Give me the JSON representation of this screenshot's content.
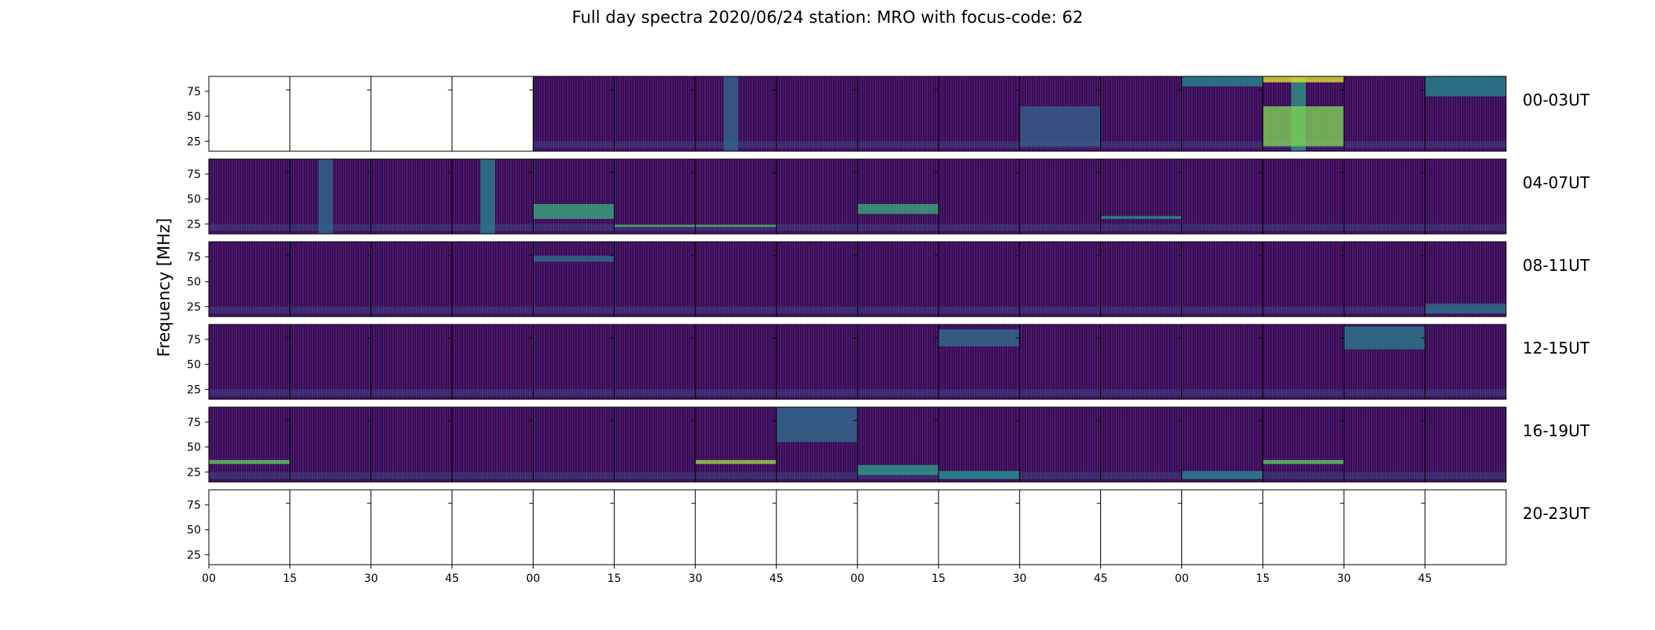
{
  "figure": {
    "title": "Full day spectra 2020/06/24 station: MRO with focus-code: 62",
    "ylabel": "Frequency [MHz]"
  },
  "colors": {
    "cmap_low": "#440154",
    "cmap_mid": "#21918c",
    "cmap_high": "#fde725",
    "empty_panel": "#ffffff",
    "frame": "#000000"
  },
  "chart_data": {
    "type": "heatmap",
    "title": "Full day spectra 2020/06/24 station: MRO with focus-code: 62",
    "xlabel": "",
    "ylabel": "Frequency [MHz]",
    "colormap": "viridis",
    "ylim": [
      15,
      90
    ],
    "yticks": [
      25,
      50,
      75
    ],
    "xticks_minutes": [
      "00",
      "15",
      "30",
      "45",
      "00",
      "15",
      "30",
      "45",
      "00",
      "15",
      "30",
      "45",
      "00",
      "15",
      "30",
      "45"
    ],
    "rows": [
      {
        "label": "00-03UT",
        "panels": [
          0,
          0,
          0,
          0,
          1,
          1,
          1,
          1,
          1,
          1,
          1,
          1,
          1,
          1,
          1,
          1
        ],
        "features": [
          {
            "panel": 6,
            "type": "vband",
            "f0": 15,
            "f1": 90,
            "intensity": 0.35
          },
          {
            "panel": 10,
            "type": "band",
            "f0": 20,
            "f1": 60,
            "intensity": 0.3
          },
          {
            "panel": 12,
            "type": "band",
            "f0": 80,
            "f1": 90,
            "intensity": 0.45
          },
          {
            "panel": 13,
            "type": "vband",
            "f0": 15,
            "f1": 90,
            "intensity": 0.55
          },
          {
            "panel": 13,
            "type": "band",
            "f0": 20,
            "f1": 60,
            "intensity": 0.8
          },
          {
            "panel": 13,
            "type": "band",
            "f0": 84,
            "f1": 90,
            "intensity": 0.95
          },
          {
            "panel": 15,
            "type": "band",
            "f0": 70,
            "f1": 90,
            "intensity": 0.45
          }
        ]
      },
      {
        "label": "04-07UT",
        "panels": [
          1,
          1,
          1,
          1,
          1,
          1,
          1,
          1,
          1,
          1,
          1,
          1,
          1,
          1,
          1,
          1
        ],
        "features": [
          {
            "panel": 1,
            "type": "vband",
            "f0": 15,
            "f1": 90,
            "intensity": 0.35
          },
          {
            "panel": 3,
            "type": "vband",
            "f0": 15,
            "f1": 90,
            "intensity": 0.45
          },
          {
            "panel": 4,
            "type": "band",
            "f0": 30,
            "f1": 45,
            "intensity": 0.6
          },
          {
            "panel": 5,
            "type": "band",
            "f0": 22,
            "f1": 24,
            "intensity": 0.7
          },
          {
            "panel": 6,
            "type": "band",
            "f0": 22,
            "f1": 24,
            "intensity": 0.7
          },
          {
            "panel": 8,
            "type": "band",
            "f0": 35,
            "f1": 45,
            "intensity": 0.6
          },
          {
            "panel": 11,
            "type": "band",
            "f0": 30,
            "f1": 33,
            "intensity": 0.5
          }
        ]
      },
      {
        "label": "08-11UT",
        "panels": [
          1,
          1,
          1,
          1,
          1,
          1,
          1,
          1,
          1,
          1,
          1,
          1,
          1,
          1,
          1,
          1
        ],
        "features": [
          {
            "panel": 4,
            "type": "band",
            "f0": 70,
            "f1": 76,
            "intensity": 0.35
          },
          {
            "panel": 15,
            "type": "band",
            "f0": 18,
            "f1": 28,
            "intensity": 0.35
          }
        ]
      },
      {
        "label": "12-15UT",
        "panels": [
          1,
          1,
          1,
          1,
          1,
          1,
          1,
          1,
          1,
          1,
          1,
          1,
          1,
          1,
          1,
          1
        ],
        "features": [
          {
            "panel": 9,
            "type": "band",
            "f0": 68,
            "f1": 85,
            "intensity": 0.35
          },
          {
            "panel": 14,
            "type": "band",
            "f0": 65,
            "f1": 88,
            "intensity": 0.4
          }
        ]
      },
      {
        "label": "16-19UT",
        "panels": [
          1,
          1,
          1,
          1,
          1,
          1,
          1,
          1,
          1,
          1,
          1,
          1,
          1,
          1,
          1,
          1
        ],
        "features": [
          {
            "panel": 0,
            "type": "band",
            "f0": 33,
            "f1": 37,
            "intensity": 0.75
          },
          {
            "panel": 6,
            "type": "band",
            "f0": 33,
            "f1": 37,
            "intensity": 0.85
          },
          {
            "panel": 7,
            "type": "band",
            "f0": 55,
            "f1": 90,
            "intensity": 0.35
          },
          {
            "panel": 8,
            "type": "band",
            "f0": 22,
            "f1": 32,
            "intensity": 0.55
          },
          {
            "panel": 9,
            "type": "band",
            "f0": 18,
            "f1": 26,
            "intensity": 0.5
          },
          {
            "panel": 12,
            "type": "band",
            "f0": 18,
            "f1": 26,
            "intensity": 0.45
          },
          {
            "panel": 13,
            "type": "band",
            "f0": 33,
            "f1": 37,
            "intensity": 0.75
          }
        ]
      },
      {
        "label": "20-23UT",
        "panels": [
          0,
          0,
          0,
          0,
          0,
          0,
          0,
          0,
          0,
          0,
          0,
          0,
          0,
          0,
          0,
          0
        ],
        "features": []
      }
    ]
  }
}
